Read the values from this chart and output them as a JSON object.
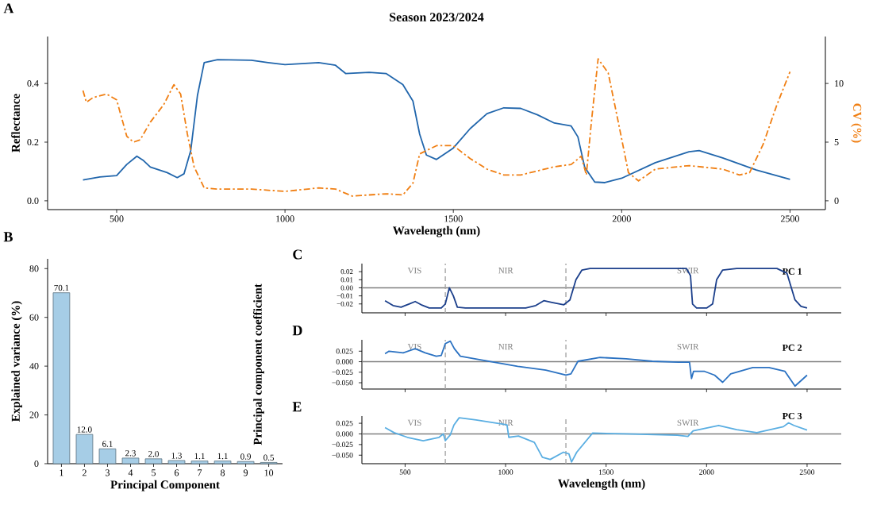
{
  "chart_data": [
    {
      "type": "line",
      "title": "Season 2023/2024",
      "xlabel": "Wavelength (nm)",
      "ylabel": "Reflectance",
      "y2label": "CV (%)",
      "annotations": [
        "A"
      ],
      "xlim": [
        295,
        2605
      ],
      "xticks": [
        500,
        1000,
        1500,
        2000,
        2500
      ],
      "ylim": [
        -0.03,
        0.56
      ],
      "yticks": [
        {
          "value": 0,
          "label": "0.0"
        },
        {
          "value": 0.2,
          "label": "0.2"
        },
        {
          "value": 0.4,
          "label": "0.4"
        }
      ],
      "y2lim": [
        -0.75,
        14
      ],
      "y2ticks": [
        0,
        5,
        10
      ],
      "series": [
        {
          "color": "#2166ac",
          "x": [
            400,
            450,
            500,
            530,
            560,
            580,
            600,
            650,
            680,
            700,
            720,
            740,
            760,
            800,
            900,
            950,
            1000,
            1100,
            1150,
            1180,
            1250,
            1300,
            1350,
            1380,
            1400,
            1420,
            1450,
            1500,
            1550,
            1600,
            1650,
            1700,
            1750,
            1800,
            1850,
            1870,
            1890,
            1920,
            1950,
            2000,
            2100,
            2200,
            2230,
            2300,
            2400,
            2500
          ],
          "values": [
            0.071,
            0.081,
            0.086,
            0.124,
            0.152,
            0.137,
            0.115,
            0.096,
            0.079,
            0.092,
            0.171,
            0.359,
            0.471,
            0.481,
            0.479,
            0.471,
            0.464,
            0.471,
            0.462,
            0.434,
            0.438,
            0.434,
            0.396,
            0.34,
            0.227,
            0.156,
            0.141,
            0.18,
            0.246,
            0.297,
            0.317,
            0.315,
            0.293,
            0.265,
            0.255,
            0.218,
            0.115,
            0.064,
            0.062,
            0.077,
            0.13,
            0.167,
            0.171,
            0.146,
            0.105,
            0.073
          ]
        },
        {
          "color": "#f07f13",
          "axis": "y2",
          "line_style": "dashdot",
          "x": [
            400,
            410,
            430,
            470,
            500,
            530,
            550,
            570,
            600,
            640,
            670,
            690,
            710,
            730,
            760,
            800,
            900,
            1000,
            1100,
            1150,
            1200,
            1250,
            1300,
            1350,
            1380,
            1400,
            1450,
            1500,
            1550,
            1600,
            1650,
            1700,
            1800,
            1850,
            1880,
            1895,
            1910,
            1930,
            1960,
            1990,
            2020,
            2050,
            2100,
            2200,
            2300,
            2350,
            2380,
            2420,
            2460,
            2500
          ],
          "values": [
            9.4,
            8.4,
            8.8,
            9.1,
            8.6,
            5.5,
            5.0,
            5.2,
            6.7,
            8.2,
            9.9,
            9.1,
            5.7,
            2.9,
            1.1,
            1.0,
            1.0,
            0.8,
            1.1,
            1.0,
            0.4,
            0.5,
            0.6,
            0.5,
            1.5,
            4.0,
            4.7,
            4.7,
            3.6,
            2.7,
            2.2,
            2.2,
            2.9,
            3.1,
            3.8,
            2.2,
            6.7,
            12.1,
            10.9,
            6.7,
            2.4,
            1.7,
            2.7,
            3.0,
            2.7,
            2.2,
            2.4,
            4.8,
            8.1,
            11.0
          ]
        }
      ]
    },
    {
      "type": "bar",
      "xlabel": "Principal Component",
      "ylabel": "Explained variance (%)",
      "annotations": [
        "B"
      ],
      "categories": [
        "1",
        "2",
        "3",
        "4",
        "5",
        "6",
        "7",
        "8",
        "9",
        "10"
      ],
      "values": [
        70.1,
        12.0,
        6.1,
        2.3,
        2.0,
        1.3,
        1.1,
        1.1,
        0.9,
        0.5
      ],
      "color": "#a6cde6",
      "ylim": [
        0,
        84
      ],
      "yticks": [
        0,
        20,
        40,
        60,
        80
      ],
      "value_labels": [
        "70.1",
        "12.0",
        "6.1",
        "2.3",
        "2.0",
        "1.3",
        "1.1",
        "1.1",
        "0.9",
        "0.5"
      ]
    },
    {
      "type": "line",
      "annotations": [
        "C",
        "VIS",
        "NIR",
        "SWIR"
      ],
      "xlim": [
        285,
        2670
      ],
      "xticks": [
        500,
        1000,
        1500,
        2000,
        2500
      ],
      "tick_labels": "y",
      "ylim": [
        -0.031,
        0.03
      ],
      "yticks": [
        {
          "value": 0.02,
          "label": "0.02"
        },
        {
          "value": 0.01,
          "label": "0.01"
        },
        {
          "value": 0,
          "label": "0.00"
        },
        {
          "value": -0.01,
          "label": "−0.01"
        },
        {
          "value": -0.02,
          "label": "−0.02"
        }
      ],
      "ref_lines": [
        {
          "axis": "y",
          "value": 0,
          "color": "#7f7f7f"
        },
        {
          "axis": "x",
          "value": 700,
          "color": "#a6a6a6",
          "line_style": "dashed"
        },
        {
          "axis": "x",
          "value": 1300,
          "color": "#a6a6a6",
          "line_style": "dashed"
        }
      ],
      "series": [
        {
          "name": "PC 1",
          "color": "#1b3f8b",
          "x": [
            400,
            440,
            480,
            520,
            550,
            580,
            620,
            680,
            700,
            720,
            740,
            760,
            800,
            1000,
            1100,
            1150,
            1190,
            1230,
            1290,
            1320,
            1350,
            1380,
            1420,
            1900,
            1920,
            1930,
            1950,
            2000,
            2030,
            2050,
            2080,
            2150,
            2350,
            2400,
            2440,
            2470,
            2500
          ],
          "values": [
            -0.016,
            -0.022,
            -0.024,
            -0.02,
            -0.017,
            -0.021,
            -0.025,
            -0.025,
            -0.02,
            0.0,
            -0.01,
            -0.024,
            -0.025,
            -0.025,
            -0.025,
            -0.022,
            -0.016,
            -0.018,
            -0.021,
            -0.015,
            0.01,
            0.022,
            0.024,
            0.024,
            0.015,
            -0.02,
            -0.025,
            -0.025,
            -0.02,
            0.01,
            0.022,
            0.024,
            0.024,
            0.018,
            -0.015,
            -0.023,
            -0.025
          ]
        }
      ]
    },
    {
      "type": "line",
      "ylabel": "Principal component coefficient",
      "annotations": [
        "D",
        "VIS",
        "NIR",
        "SWIR"
      ],
      "xlim": [
        285,
        2670
      ],
      "xticks": [
        500,
        1000,
        1500,
        2000,
        2500
      ],
      "tick_labels": "y",
      "ylim": [
        -0.065,
        0.052
      ],
      "yticks": [
        {
          "value": 0.025,
          "label": "0.025"
        },
        {
          "value": 0,
          "label": "0.000"
        },
        {
          "value": -0.025,
          "label": "−0.025"
        },
        {
          "value": -0.05,
          "label": "−0.050"
        }
      ],
      "ref_lines": [
        {
          "axis": "y",
          "value": 0,
          "color": "#7f7f7f"
        },
        {
          "axis": "x",
          "value": 700,
          "color": "#a6a6a6",
          "line_style": "dashed"
        },
        {
          "axis": "x",
          "value": 1300,
          "color": "#a6a6a6",
          "line_style": "dashed"
        }
      ],
      "series": [
        {
          "name": "PC 2",
          "color": "#2b72c2",
          "x": [
            400,
            420,
            490,
            550,
            600,
            655,
            680,
            700,
            725,
            745,
            775,
            880,
            1060,
            1200,
            1300,
            1325,
            1360,
            1470,
            1600,
            1730,
            1860,
            1915,
            1925,
            1935,
            1990,
            2040,
            2080,
            2120,
            2230,
            2310,
            2390,
            2440,
            2500
          ],
          "values": [
            0.019,
            0.025,
            0.021,
            0.031,
            0.021,
            0.013,
            0.015,
            0.043,
            0.049,
            0.031,
            0.013,
            0.004,
            -0.011,
            -0.02,
            -0.032,
            -0.029,
            0.001,
            0.01,
            0.007,
            0.001,
            -0.001,
            -0.001,
            -0.04,
            -0.023,
            -0.023,
            -0.032,
            -0.049,
            -0.029,
            -0.014,
            -0.014,
            -0.023,
            -0.058,
            -0.032
          ]
        }
      ]
    },
    {
      "type": "line",
      "xlabel": "Wavelength (nm)",
      "annotations": [
        "E",
        "VIS",
        "NIR",
        "SWIR"
      ],
      "xlim": [
        285,
        2670
      ],
      "xticks": [
        500,
        1000,
        1500,
        2000,
        2500
      ],
      "ylim": [
        -0.07,
        0.042
      ],
      "yticks": [
        {
          "value": 0.025,
          "label": "0.025"
        },
        {
          "value": 0,
          "label": "0.000"
        },
        {
          "value": -0.025,
          "label": "−0.025"
        },
        {
          "value": -0.05,
          "label": "−0.050"
        }
      ],
      "ref_lines": [
        {
          "axis": "y",
          "value": 0,
          "color": "#7f7f7f"
        },
        {
          "axis": "x",
          "value": 700,
          "color": "#a6a6a6",
          "line_style": "dashed"
        },
        {
          "axis": "x",
          "value": 1300,
          "color": "#a6a6a6",
          "line_style": "dashed"
        }
      ],
      "series": [
        {
          "name": "PC 3",
          "color": "#5aaee2",
          "x": [
            400,
            445,
            511,
            590,
            669,
            690,
            700,
            725,
            743,
            769,
            853,
            985,
            1007,
            1016,
            1064,
            1143,
            1183,
            1222,
            1288,
            1315,
            1328,
            1354,
            1433,
            1591,
            1854,
            1907,
            1933,
            2060,
            2150,
            2250,
            2382,
            2408,
            2434,
            2500
          ],
          "values": [
            0.015,
            0.003,
            -0.008,
            -0.016,
            -0.008,
            0.0,
            -0.016,
            -0.002,
            0.021,
            0.038,
            0.033,
            0.023,
            0.021,
            -0.008,
            -0.005,
            -0.02,
            -0.055,
            -0.06,
            -0.043,
            -0.047,
            -0.066,
            -0.043,
            0.002,
            0.0,
            -0.003,
            -0.006,
            0.007,
            0.02,
            0.01,
            0.003,
            0.017,
            0.026,
            0.02,
            0.009
          ]
        }
      ]
    }
  ]
}
